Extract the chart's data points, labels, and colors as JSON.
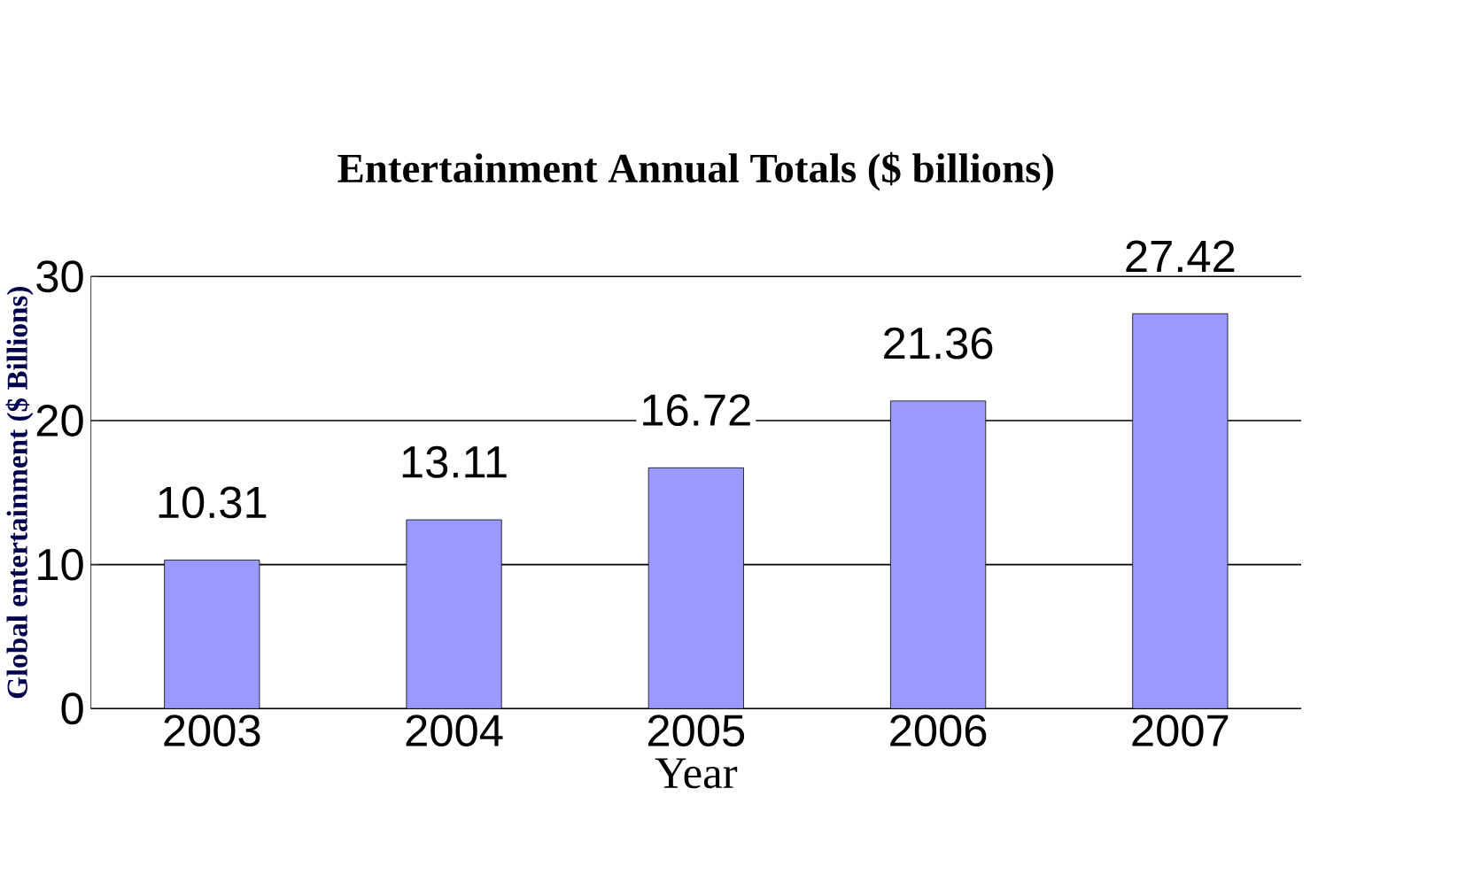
{
  "chart_data": {
    "type": "bar",
    "title": "Entertainment Annual Totals ($ billions)",
    "xlabel": "Year",
    "ylabel": "Global entertainment ($ Billions)",
    "categories": [
      "2003",
      "2004",
      "2005",
      "2006",
      "2007"
    ],
    "values": [
      10.31,
      13.11,
      16.72,
      21.36,
      27.42
    ],
    "color": "#9999ff",
    "ylim": [
      0,
      30
    ],
    "yticks": [
      0,
      10,
      20,
      30
    ],
    "grid": "y",
    "data_labels": true
  }
}
